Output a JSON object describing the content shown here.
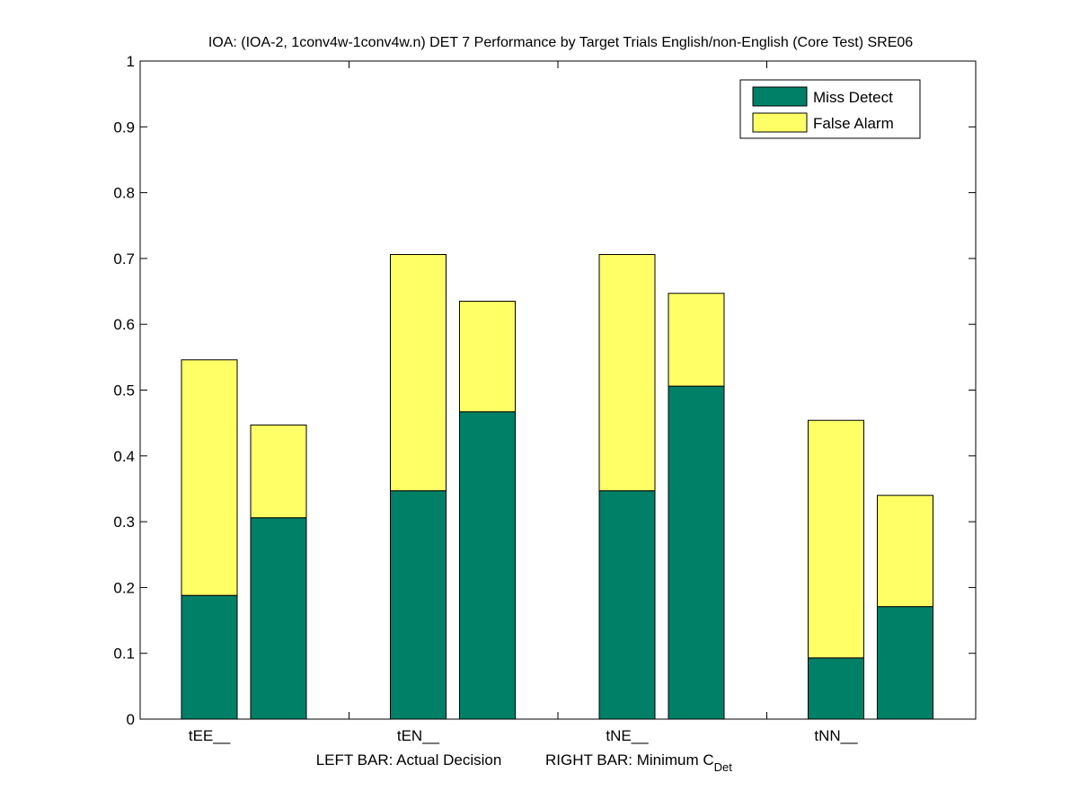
{
  "chart_data": {
    "type": "bar",
    "stacked": true,
    "title": "IOA: (IOA-2, 1conv4w-1conv4w.n) DET 7 Performance by Target Trials English/non-English (Core Test) SRE06",
    "xlabel_left": "LEFT BAR: Actual Decision",
    "xlabel_right": "RIGHT BAR: Minimum C",
    "xlabel_right_sub": "Det",
    "categories": [
      "tEE__",
      "tEN__",
      "tNE__",
      "tNN__"
    ],
    "ylim": [
      0,
      1
    ],
    "yticks": [
      "0",
      "0.1",
      "0.2",
      "0.3",
      "0.4",
      "0.5",
      "0.6",
      "0.7",
      "0.8",
      "0.9",
      "1"
    ],
    "legend_position": "top-right",
    "grid": false,
    "colors": {
      "miss": "#008066",
      "false_alarm": "#ffff66"
    },
    "bars_per_category": [
      "Actual Decision",
      "Minimum CDet"
    ],
    "series": [
      {
        "name": "Miss Detect",
        "actual": [
          0.188,
          0.347,
          0.347,
          0.093
        ],
        "minimum": [
          0.306,
          0.467,
          0.506,
          0.171
        ]
      },
      {
        "name": "False Alarm",
        "actual": [
          0.358,
          0.359,
          0.359,
          0.361
        ],
        "minimum": [
          0.141,
          0.168,
          0.141,
          0.169
        ]
      }
    ]
  }
}
